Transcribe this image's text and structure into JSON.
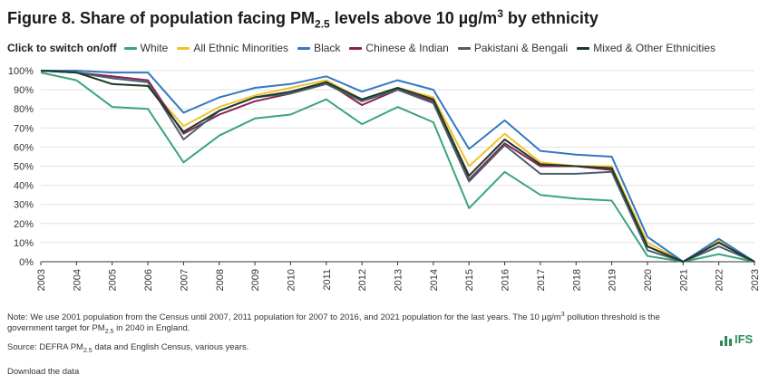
{
  "header": {
    "title_pre": "Figure 8. Share of population facing PM",
    "title_sub": "2.5",
    "title_mid": " levels above 10 µg/m",
    "title_sup": "3",
    "title_post": " by ethnicity"
  },
  "legend": {
    "label": "Click to switch on/off"
  },
  "chart_data": {
    "type": "line",
    "title": "Share of population facing PM2.5 levels above 10 µg/m3 by ethnicity",
    "xlabel": "",
    "ylabel": "",
    "categories": [
      "2003",
      "2004",
      "2005",
      "2006",
      "2007",
      "2008",
      "2009",
      "2010",
      "2011",
      "2012",
      "2013",
      "2014",
      "2015",
      "2016",
      "2017",
      "2018",
      "2019",
      "2020",
      "2021",
      "2022",
      "2023"
    ],
    "yticks": [
      "0%",
      "10%",
      "20%",
      "30%",
      "40%",
      "50%",
      "60%",
      "70%",
      "80%",
      "90%",
      "100%"
    ],
    "ylim": [
      0,
      100
    ],
    "grid": true,
    "series": [
      {
        "name": "White",
        "color": "#3aa57a",
        "values": [
          99,
          95,
          81,
          80,
          52,
          66,
          75,
          77,
          85,
          72,
          81,
          73,
          28,
          47,
          35,
          33,
          32,
          3,
          0,
          4,
          0
        ]
      },
      {
        "name": "All Ethnic Minorities",
        "color": "#f2c12e",
        "values": [
          100,
          99,
          93,
          92,
          71,
          81,
          87,
          91,
          95,
          85,
          91,
          86,
          50,
          67,
          52,
          50,
          50,
          10,
          0,
          11,
          0
        ]
      },
      {
        "name": "Black",
        "color": "#3378c1",
        "values": [
          100,
          100,
          99,
          99,
          78,
          86,
          91,
          93,
          97,
          89,
          95,
          90,
          59,
          74,
          58,
          56,
          55,
          13,
          0,
          12,
          0
        ]
      },
      {
        "name": "Chinese & Indian",
        "color": "#8b2252",
        "values": [
          100,
          99,
          97,
          95,
          67,
          77,
          84,
          88,
          94,
          82,
          90,
          84,
          43,
          62,
          50,
          50,
          48,
          8,
          0,
          10,
          0
        ]
      },
      {
        "name": "Pakistani & Bengali",
        "color": "#4a5e6e",
        "values": [
          100,
          99,
          96,
          94,
          64,
          79,
          86,
          88,
          93,
          84,
          90,
          83,
          42,
          61,
          46,
          46,
          47,
          6,
          0,
          8,
          0
        ]
      },
      {
        "name": "Mixed & Other Ethnicities",
        "color": "#1b3a2b",
        "values": [
          100,
          99,
          93,
          92,
          68,
          79,
          86,
          89,
          94,
          85,
          91,
          85,
          45,
          64,
          51,
          50,
          49,
          8,
          0,
          10,
          0
        ]
      }
    ]
  },
  "footer": {
    "note_a": "Note: We use 2001 population from the Census until 2007, 2011 population for 2007 to 2016, and 2021 population for the last years. The 10 µg/m",
    "note_sup": "3",
    "note_b": " pollution threshold is the",
    "note_c": "government target for PM",
    "note_sub": "2.5",
    "note_d": " in 2040 in England.",
    "source_a": "Source: DEFRA PM",
    "source_sub": "2.5",
    "source_b": " data and English Census, various years.",
    "download": "Download the data",
    "logo_text": "IFS",
    "logo_color": "#2e8b57"
  }
}
